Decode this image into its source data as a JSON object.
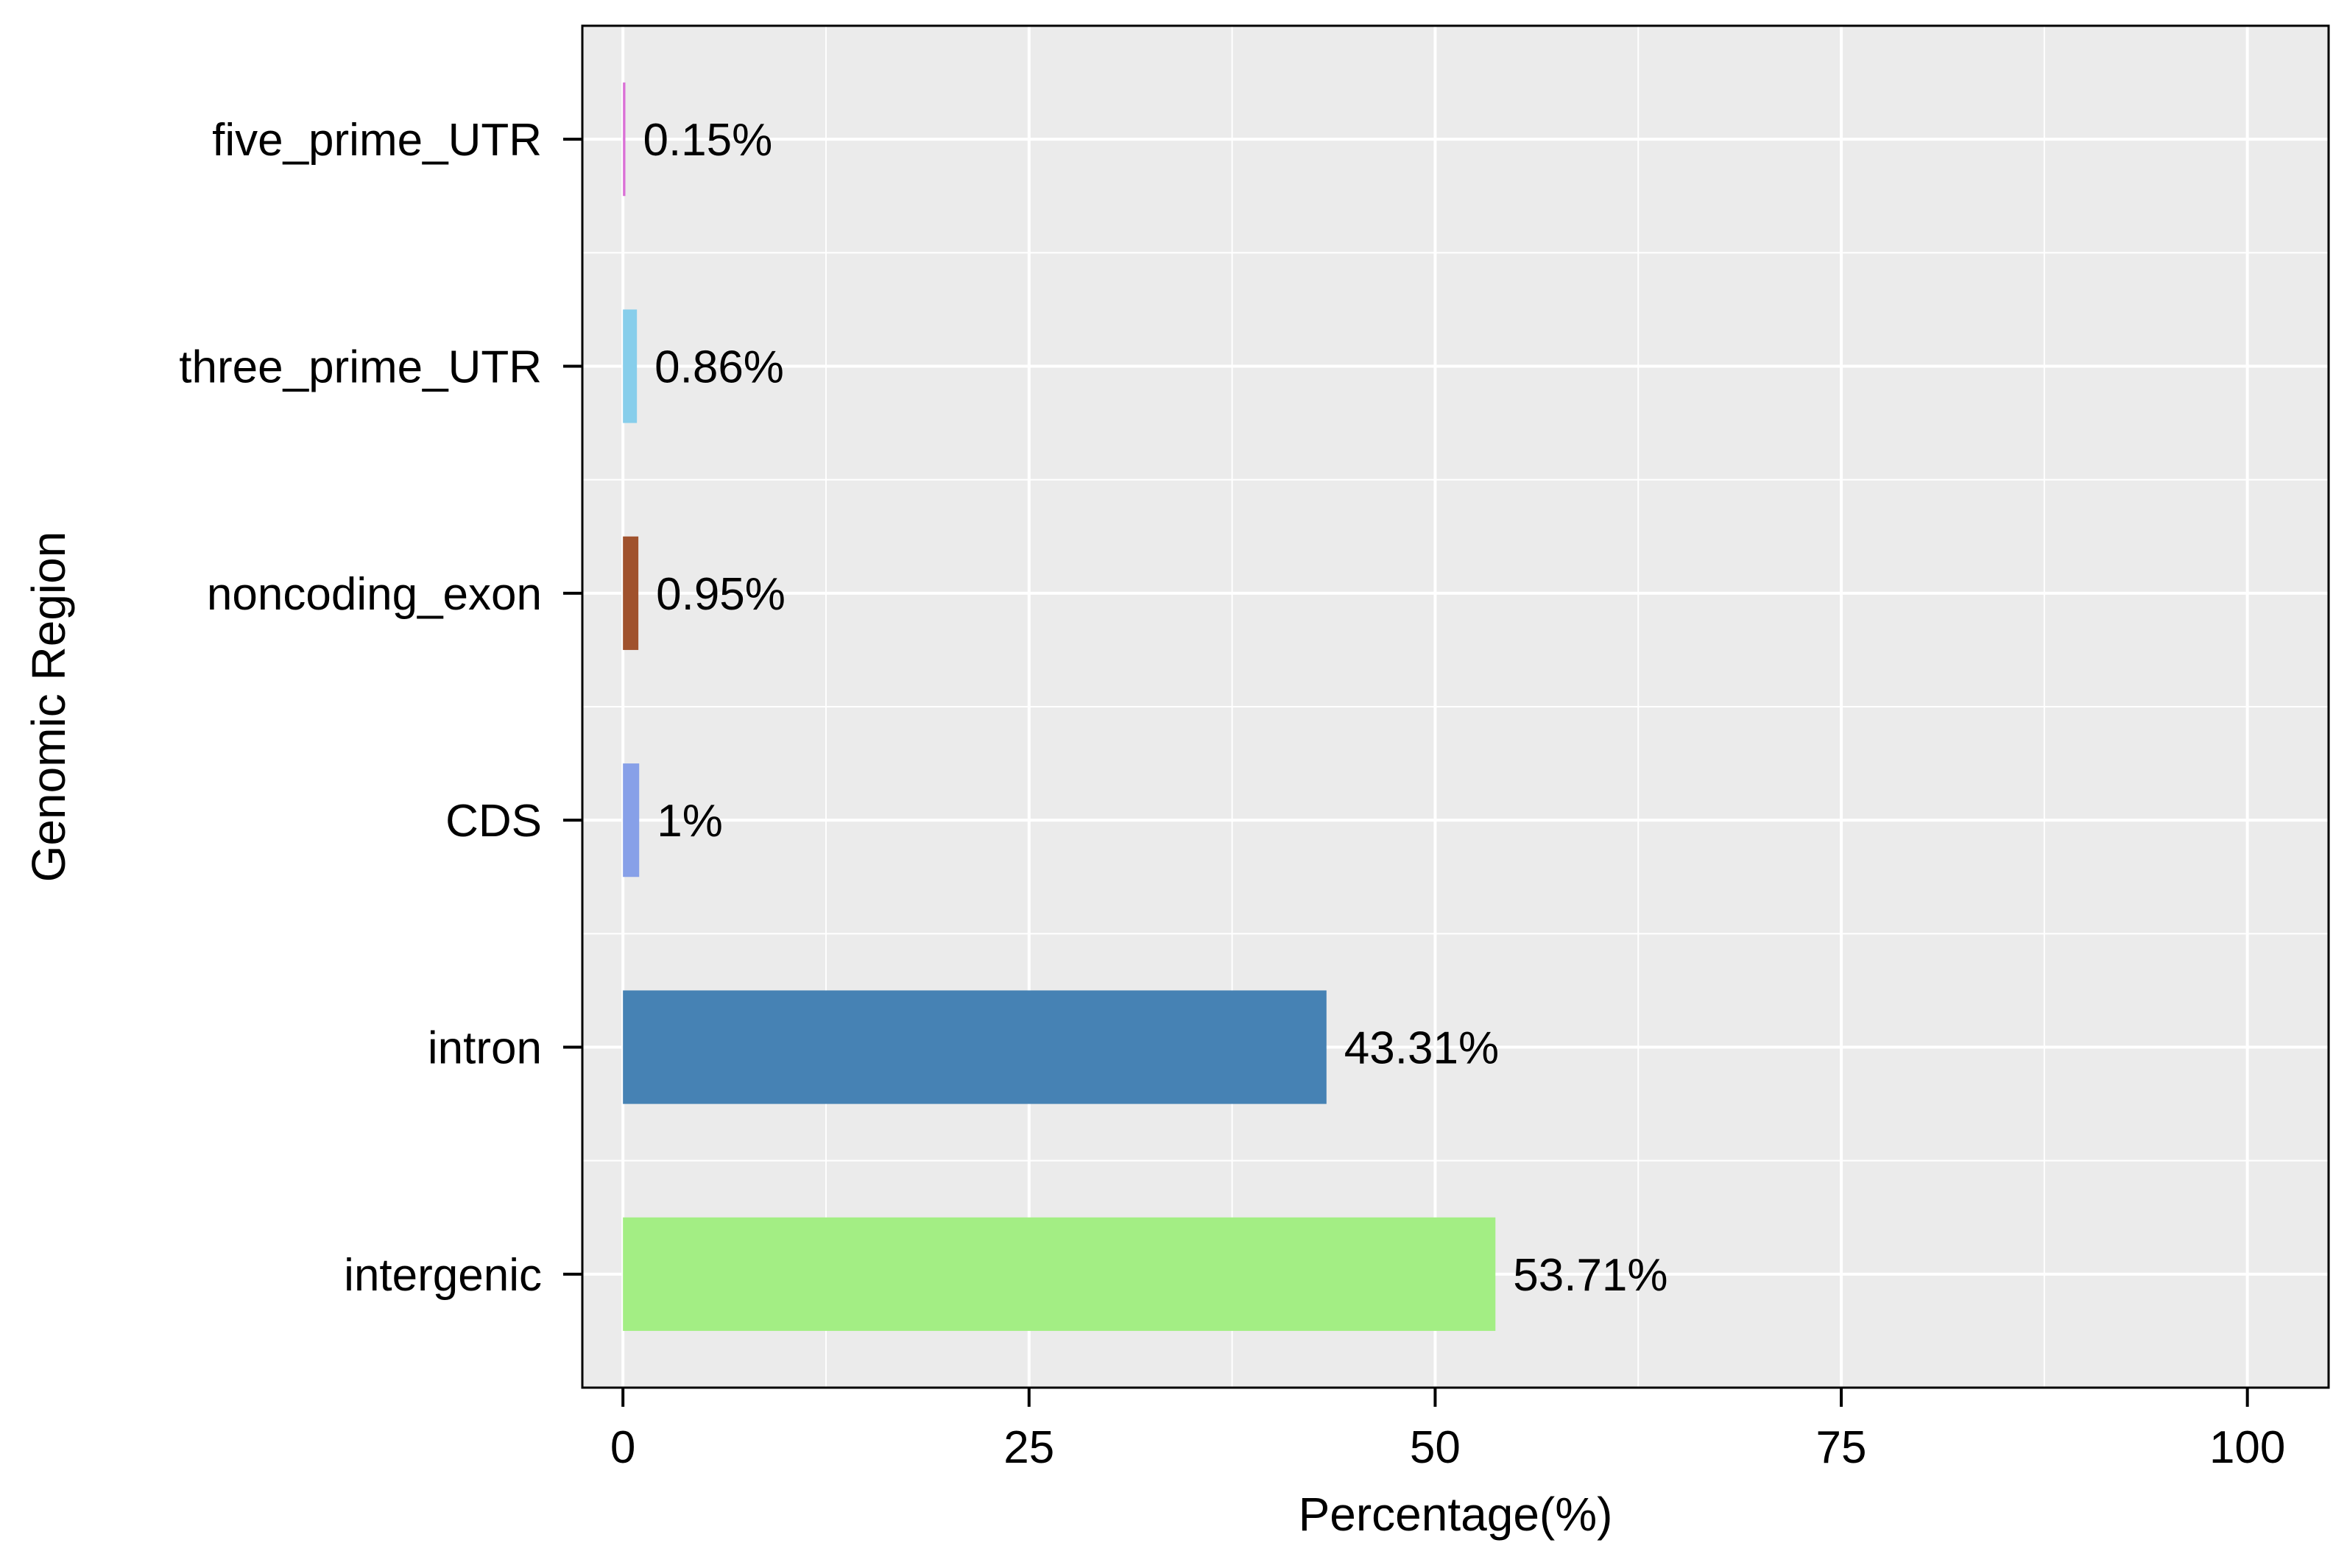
{
  "chart_data": {
    "type": "bar",
    "orientation": "horizontal",
    "title": "",
    "xlabel": "Percentage(%)",
    "ylabel": "Genomic Region",
    "xlim": [
      -2.5,
      105
    ],
    "xticks": [
      0,
      25,
      50,
      75,
      100
    ],
    "x_tick_labels": [
      "0",
      "25",
      "50",
      "75",
      "100"
    ],
    "grid": true,
    "legend": "none",
    "background": "#EBEBEB",
    "categories": [
      "five_prime_UTR",
      "three_prime_UTR",
      "noncoding_exon",
      "CDS",
      "intron",
      "intergenic"
    ],
    "values": [
      0.15,
      0.86,
      0.95,
      1,
      43.31,
      53.71
    ],
    "data_labels": [
      "0.15%",
      "0.86%",
      "0.95%",
      "1%",
      "43.31%",
      "53.71%"
    ],
    "colors": [
      "#DA70D6",
      "#87CEEB",
      "#A0522D",
      "#87A0E8",
      "#4682B4",
      "#A3EE84"
    ]
  }
}
